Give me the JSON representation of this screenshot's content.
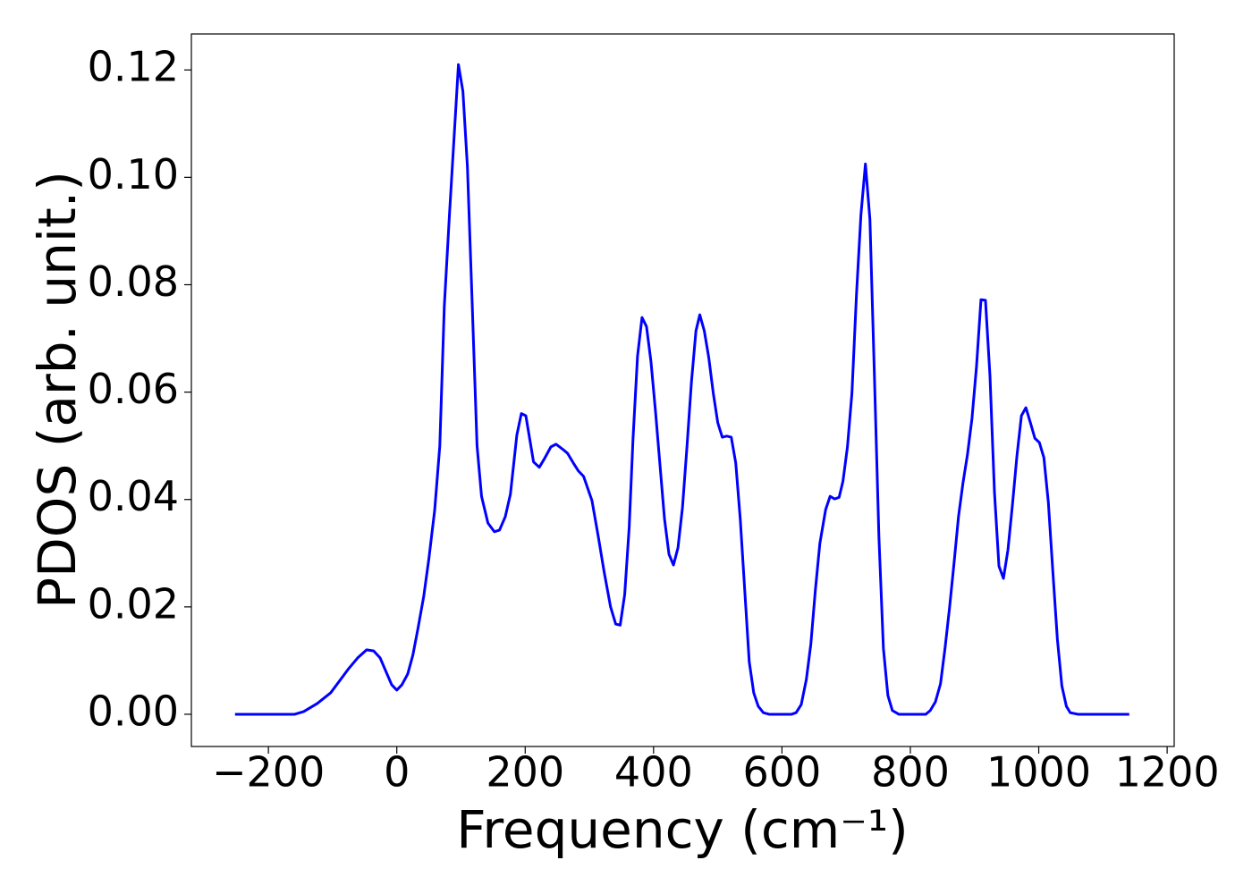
{
  "chart_data": {
    "type": "line",
    "xlabel": "Frequency (cm⁻¹)",
    "ylabel": "PDOS (arb. unit.)",
    "xlim": [
      -320,
      1211
    ],
    "ylim": [
      -0.006,
      0.1267
    ],
    "xticks": [
      {
        "value": -200,
        "label": "−200"
      },
      0,
      200,
      400,
      600,
      800,
      1000,
      1200
    ],
    "yticks": [
      {
        "value": 0,
        "label": "0.00"
      },
      {
        "value": 0.02,
        "label": "0.02"
      },
      {
        "value": 0.04,
        "label": "0.04"
      },
      {
        "value": 0.06,
        "label": "0.06"
      },
      {
        "value": 0.08,
        "label": "0.08"
      },
      {
        "value": 0.1,
        "label": "0.10"
      },
      {
        "value": 0.12,
        "label": "0.12"
      }
    ],
    "x": [
      -252,
      -159,
      -145,
      -124,
      -103,
      -75,
      -61,
      -47,
      -36,
      -26,
      -17,
      -8,
      0,
      8,
      17,
      25,
      33,
      42,
      50,
      59,
      67,
      74,
      82,
      89,
      96,
      103,
      110,
      117,
      125,
      132,
      142,
      152,
      160,
      169,
      177,
      187,
      194,
      201,
      213,
      222,
      230,
      240,
      248,
      258,
      266,
      275,
      283,
      291,
      304,
      314,
      323,
      333,
      341,
      348,
      355,
      362,
      368,
      375,
      382,
      389,
      396,
      403,
      410,
      417,
      424,
      431,
      438,
      445,
      452,
      459,
      466,
      472,
      479,
      486,
      493,
      500,
      507,
      514,
      521,
      528,
      535,
      542,
      549,
      556,
      563,
      571,
      580,
      615,
      622,
      630,
      638,
      645,
      652,
      659,
      668,
      675,
      682,
      689,
      695,
      702,
      709,
      716,
      723,
      730,
      737,
      744,
      751,
      758,
      765,
      772,
      782,
      824,
      831,
      839,
      847,
      854,
      861,
      868,
      875,
      882,
      889,
      896,
      903,
      910,
      917,
      924,
      931,
      938,
      945,
      952,
      959,
      966,
      973,
      980,
      987,
      994,
      1001,
      1008,
      1015,
      1022,
      1029,
      1036,
      1043,
      1049,
      1061,
      1141
    ],
    "series": [
      {
        "color": "#0000ff",
        "values": [
          0,
          0,
          0.0005,
          0.002,
          0.004,
          0.0085,
          0.0105,
          0.012,
          0.0118,
          0.0105,
          0.008,
          0.0055,
          0.0045,
          0.0055,
          0.0075,
          0.011,
          0.016,
          0.022,
          0.029,
          0.038,
          0.05,
          0.076,
          0.093,
          0.107,
          0.121,
          0.116,
          0.102,
          0.078,
          0.05,
          0.0406,
          0.0356,
          0.034,
          0.0343,
          0.0368,
          0.041,
          0.052,
          0.056,
          0.0556,
          0.047,
          0.046,
          0.0476,
          0.0498,
          0.0503,
          0.0494,
          0.0486,
          0.0468,
          0.0453,
          0.0443,
          0.0398,
          0.033,
          0.0265,
          0.02,
          0.0168,
          0.0166,
          0.0223,
          0.0348,
          0.0514,
          0.0667,
          0.0739,
          0.0722,
          0.0656,
          0.0564,
          0.0464,
          0.0364,
          0.0298,
          0.0278,
          0.031,
          0.0385,
          0.0498,
          0.0619,
          0.0714,
          0.0744,
          0.0714,
          0.0664,
          0.0598,
          0.0543,
          0.0516,
          0.0518,
          0.0516,
          0.0468,
          0.0364,
          0.0231,
          0.0098,
          0.004,
          0.0015,
          0.0003,
          0,
          0,
          0.0003,
          0.0018,
          0.0065,
          0.0131,
          0.0231,
          0.0318,
          0.0381,
          0.0406,
          0.0401,
          0.0404,
          0.0434,
          0.0498,
          0.0598,
          0.078,
          0.093,
          0.1025,
          0.0922,
          0.0631,
          0.0331,
          0.0123,
          0.0035,
          0.0007,
          0,
          0,
          0.0007,
          0.0023,
          0.0057,
          0.0123,
          0.0198,
          0.0281,
          0.0368,
          0.0431,
          0.0484,
          0.0551,
          0.0647,
          0.0772,
          0.0771,
          0.0631,
          0.0414,
          0.0276,
          0.0253,
          0.0306,
          0.039,
          0.0481,
          0.0556,
          0.0571,
          0.0543,
          0.0514,
          0.0506,
          0.0478,
          0.0394,
          0.0265,
          0.014,
          0.0053,
          0.0015,
          0.0003,
          0,
          0
        ]
      }
    ]
  }
}
